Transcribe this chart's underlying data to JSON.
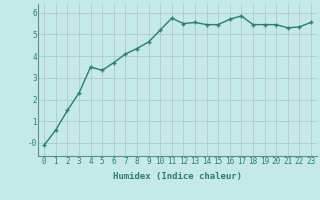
{
  "x": [
    0,
    1,
    2,
    3,
    4,
    5,
    6,
    7,
    8,
    9,
    10,
    11,
    12,
    13,
    14,
    15,
    16,
    17,
    18,
    19,
    20,
    21,
    22,
    23
  ],
  "y": [
    -0.1,
    0.6,
    1.5,
    2.3,
    3.5,
    3.35,
    3.7,
    4.1,
    4.35,
    4.65,
    5.2,
    5.75,
    5.5,
    5.55,
    5.45,
    5.45,
    5.7,
    5.85,
    5.45,
    5.45,
    5.45,
    5.3,
    5.35,
    5.55
  ],
  "line_color": "#2e7d6e",
  "marker": "+",
  "markersize": 3.5,
  "linewidth": 1.0,
  "background_color": "#c5e8e8",
  "grid_color": "#b0d0d0",
  "xlabel": "Humidex (Indice chaleur)",
  "xlabel_fontsize": 6.5,
  "tick_fontsize": 5.5,
  "ylim": [
    -0.6,
    6.4
  ],
  "xlim": [
    -0.5,
    23.5
  ],
  "yticks": [
    0,
    1,
    2,
    3,
    4,
    5,
    6
  ],
  "ytick_labels": [
    "-0",
    "1",
    "2",
    "3",
    "4",
    "5",
    "6"
  ],
  "xticks": [
    0,
    1,
    2,
    3,
    4,
    5,
    6,
    7,
    8,
    9,
    10,
    11,
    12,
    13,
    14,
    15,
    16,
    17,
    18,
    19,
    20,
    21,
    22,
    23
  ],
  "border_color": "#5a9090"
}
